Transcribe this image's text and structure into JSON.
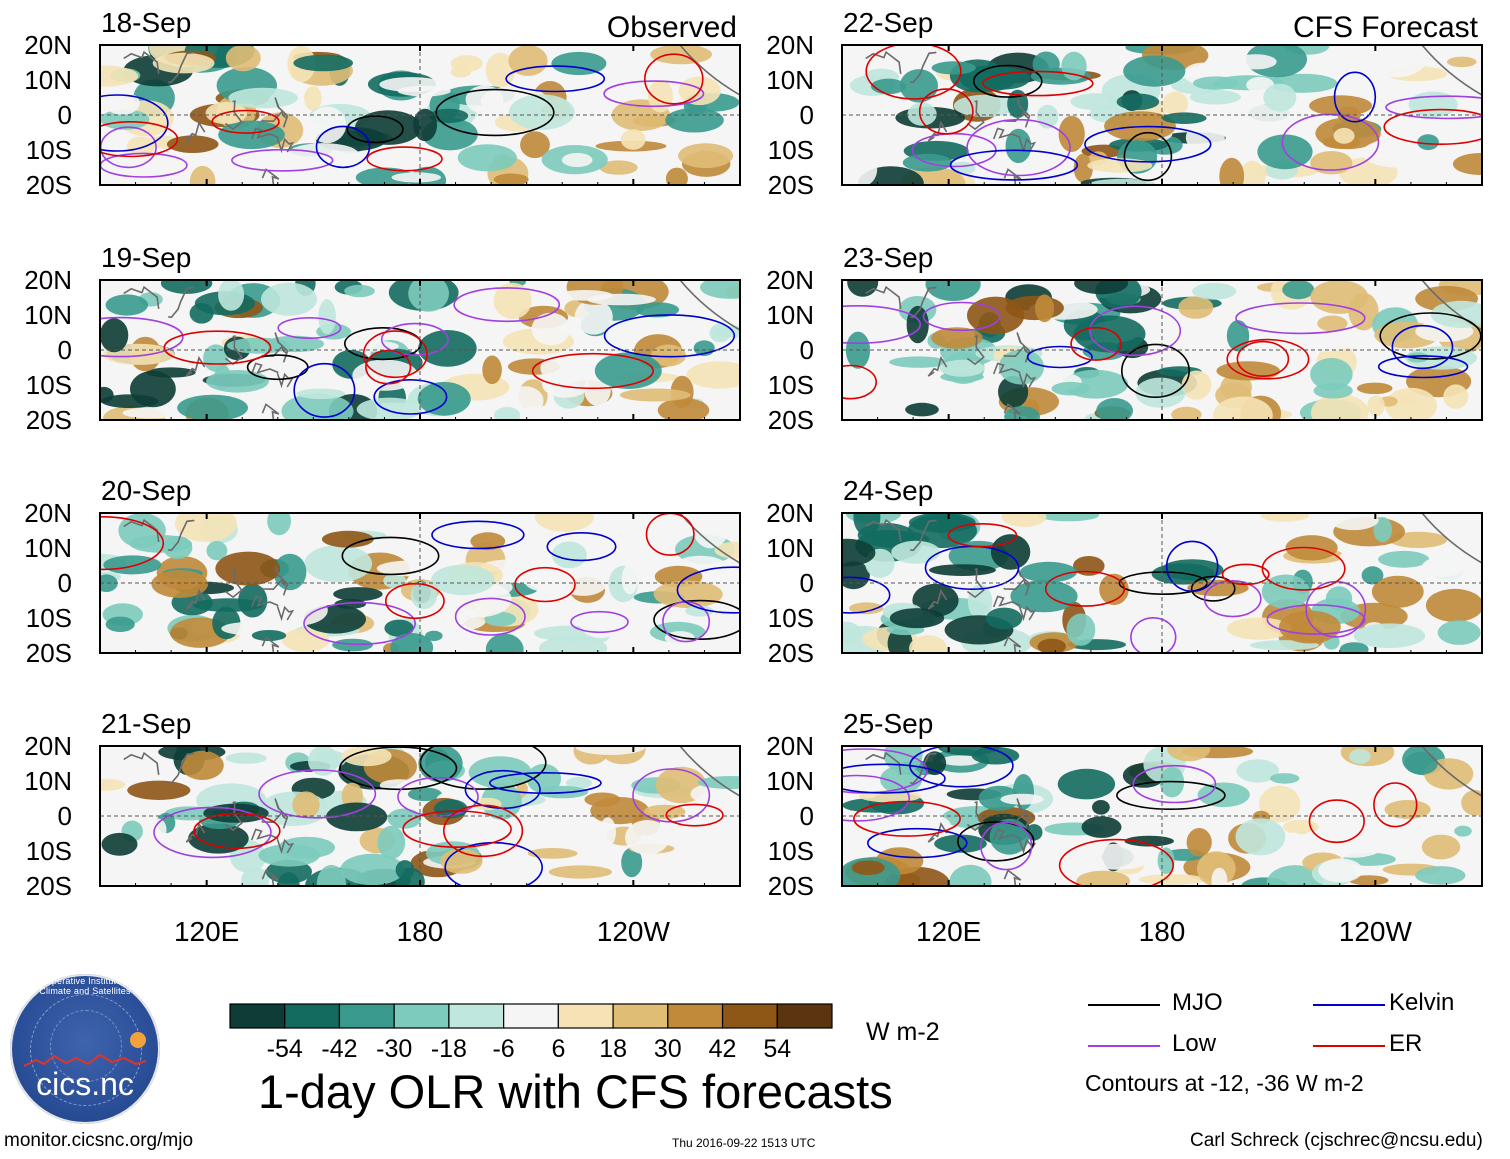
{
  "chart_data": {
    "type": "heatmap",
    "title": "1-day OLR with CFS forecasts",
    "units": "W m-2",
    "column_titles": [
      "Observed",
      "CFS Forecast"
    ],
    "panels": [
      {
        "date": "18-Sep",
        "column": "Observed"
      },
      {
        "date": "19-Sep",
        "column": "Observed"
      },
      {
        "date": "20-Sep",
        "column": "Observed"
      },
      {
        "date": "21-Sep",
        "column": "Observed"
      },
      {
        "date": "22-Sep",
        "column": "CFS Forecast"
      },
      {
        "date": "23-Sep",
        "column": "CFS Forecast"
      },
      {
        "date": "24-Sep",
        "column": "CFS Forecast"
      },
      {
        "date": "25-Sep",
        "column": "CFS Forecast"
      }
    ],
    "y_axis": {
      "tick_labels": [
        "20N",
        "10N",
        "0",
        "10S",
        "20S"
      ],
      "ylim": [
        -20,
        20
      ]
    },
    "x_axis": {
      "tick_labels": [
        "120E",
        "180",
        "120W"
      ],
      "xlim_degrees_east": [
        90,
        270
      ]
    },
    "colorbar": {
      "tick_labels": [
        "-54",
        "-42",
        "-30",
        "-18",
        "-6",
        "6",
        "18",
        "30",
        "42",
        "54"
      ],
      "colors": [
        "#0d3d36",
        "#136b60",
        "#3a9a8e",
        "#7ccbbc",
        "#bfe7dd",
        "#f5f5f5",
        "#f5e3b6",
        "#e0bd75",
        "#c08a3a",
        "#8e5716",
        "#5b3510"
      ]
    },
    "legend": [
      {
        "label": "MJO",
        "color": "#000000"
      },
      {
        "label": "Kelvin",
        "color": "#0000cc"
      },
      {
        "label": "Low",
        "color": "#a040e0"
      },
      {
        "label": "ER",
        "color": "#dd0000"
      }
    ],
    "contour_note": "Contours at -12, -36 W m-2"
  },
  "logo_text": "cics.nc",
  "logo_arc_text": "Cooperative Institute for Climate and Satellites",
  "footer": {
    "left": "monitor.cicsnc.org/mjo",
    "center": "Thu 2016-09-22 1513 UTC",
    "right": "Carl Schreck (cjschrec@ncsu.edu)"
  }
}
